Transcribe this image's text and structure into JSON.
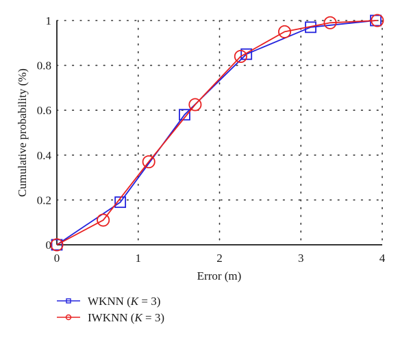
{
  "chart_data": {
    "type": "line",
    "title": "",
    "xlabel": "Error (m)",
    "ylabel": "Cumulative probability (%)",
    "xlim": [
      0,
      4
    ],
    "ylim": [
      0,
      1
    ],
    "xticks": [
      "0",
      "1",
      "2",
      "3",
      "4"
    ],
    "yticks": [
      "0",
      "0.2",
      "0.4",
      "0.6",
      "0.8",
      "1"
    ],
    "grid": true,
    "legend_position": "below-left",
    "series": [
      {
        "name": "WKNN (K = 3)",
        "name_prefix": "WKNN (",
        "name_italic": "K",
        "name_suffix": " = 3)",
        "color": "#2222dd",
        "marker": "square",
        "x": [
          0,
          0.78,
          1.57,
          2.33,
          3.12,
          3.92
        ],
        "y": [
          0,
          0.19,
          0.58,
          0.85,
          0.97,
          1.0
        ]
      },
      {
        "name": "IWKNN (K = 3)",
        "name_prefix": "IWKNN (",
        "name_italic": "K",
        "name_suffix": " = 3)",
        "color": "#e82020",
        "marker": "circle",
        "x": [
          0,
          0.57,
          1.13,
          1.7,
          2.26,
          2.8,
          3.36,
          3.94
        ],
        "y": [
          0,
          0.11,
          0.37,
          0.625,
          0.84,
          0.95,
          0.99,
          1.0
        ]
      }
    ]
  }
}
